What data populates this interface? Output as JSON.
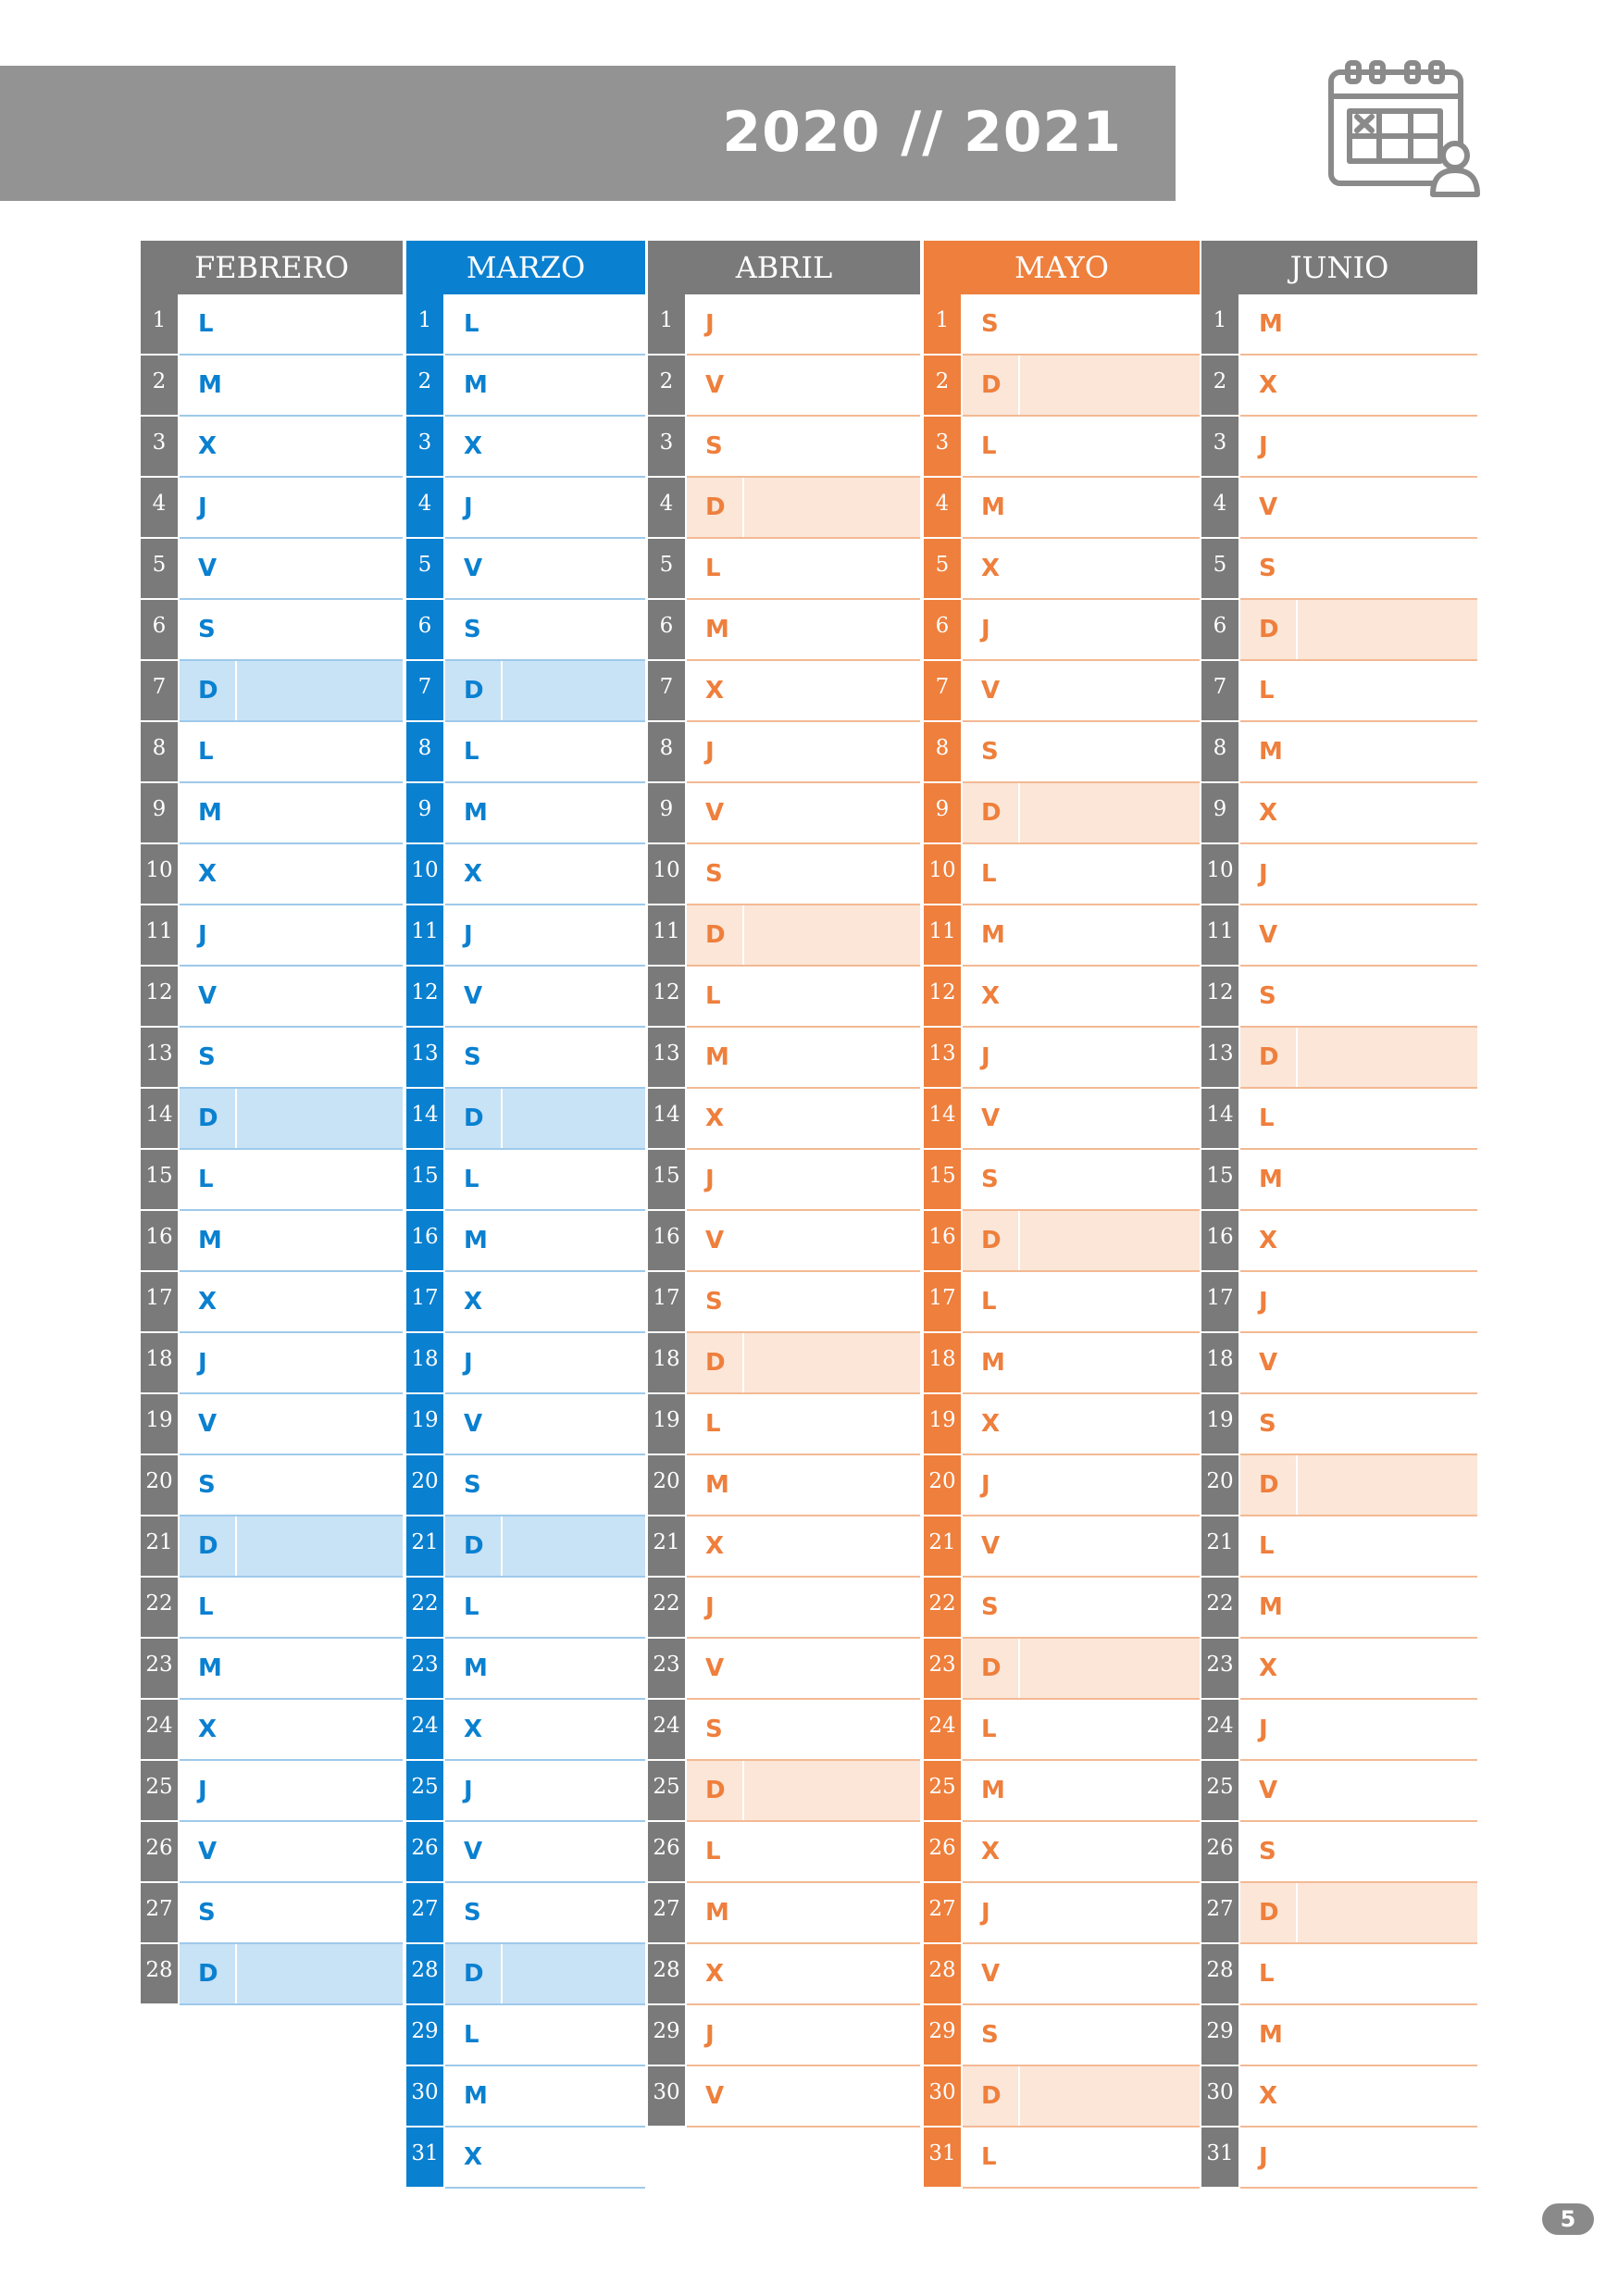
{
  "header": {
    "year_range": "2020 // 2021"
  },
  "icon": "calendar-user-icon",
  "colors": {
    "gray": "#7a7a7a",
    "header_gray": "#939393",
    "blue": "#0a80d0",
    "blue_light": "#c8e2f6",
    "orange": "#ee7f3c",
    "orange_light": "#fbe6d8"
  },
  "page_number": "5",
  "months": [
    {
      "name": "FEBRERO",
      "theme": "blue",
      "header_color": "#7a7a7a",
      "num_color": "#7a7a7a",
      "days": [
        "L",
        "M",
        "X",
        "J",
        "V",
        "S",
        "D",
        "L",
        "M",
        "X",
        "J",
        "V",
        "S",
        "D",
        "L",
        "M",
        "X",
        "J",
        "V",
        "S",
        "D",
        "L",
        "M",
        "X",
        "J",
        "V",
        "S",
        "D"
      ]
    },
    {
      "name": "MARZO",
      "theme": "blue",
      "header_color": "#0a80d0",
      "num_color": "#0a80d0",
      "days": [
        "L",
        "M",
        "X",
        "J",
        "V",
        "S",
        "D",
        "L",
        "M",
        "X",
        "J",
        "V",
        "S",
        "D",
        "L",
        "M",
        "X",
        "J",
        "V",
        "S",
        "D",
        "L",
        "M",
        "X",
        "J",
        "V",
        "S",
        "D",
        "L",
        "M",
        "X"
      ]
    },
    {
      "name": "ABRIL",
      "theme": "orange",
      "header_color": "#7a7a7a",
      "num_color": "#7a7a7a",
      "days": [
        "J",
        "V",
        "S",
        "D",
        "L",
        "M",
        "X",
        "J",
        "V",
        "S",
        "D",
        "L",
        "M",
        "X",
        "J",
        "V",
        "S",
        "D",
        "L",
        "M",
        "X",
        "J",
        "V",
        "S",
        "D",
        "L",
        "M",
        "X",
        "J",
        "V"
      ]
    },
    {
      "name": "MAYO",
      "theme": "orange",
      "header_color": "#ee7f3c",
      "num_color": "#ee7f3c",
      "days": [
        "S",
        "D",
        "L",
        "M",
        "X",
        "J",
        "V",
        "S",
        "D",
        "L",
        "M",
        "X",
        "J",
        "V",
        "S",
        "D",
        "L",
        "M",
        "X",
        "J",
        "V",
        "S",
        "D",
        "L",
        "M",
        "X",
        "J",
        "V",
        "S",
        "D",
        "L"
      ]
    },
    {
      "name": "JUNIO",
      "theme": "orange",
      "header_color": "#7a7a7a",
      "num_color": "#7a7a7a",
      "days": [
        "M",
        "X",
        "J",
        "V",
        "S",
        "D",
        "L",
        "M",
        "X",
        "J",
        "V",
        "S",
        "D",
        "L",
        "M",
        "X",
        "J",
        "V",
        "S",
        "D",
        "L",
        "M",
        "X",
        "J",
        "V",
        "S",
        "D",
        "L",
        "M",
        "X",
        "J"
      ]
    }
  ]
}
